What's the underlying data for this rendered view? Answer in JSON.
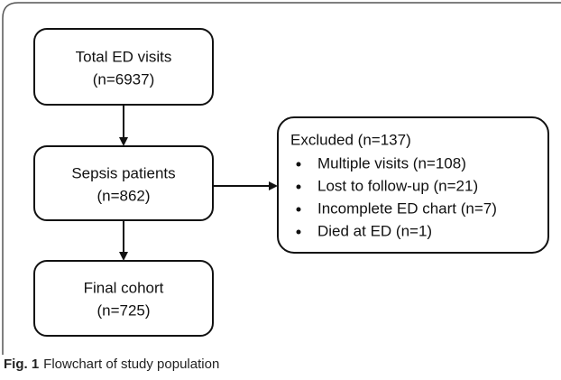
{
  "nodes": [
    {
      "lines": [
        "Total ED visits",
        "(n=6937)"
      ]
    },
    {
      "lines": [
        "Sepsis patients",
        "(n=862)"
      ]
    },
    {
      "lines": [
        "Final cohort",
        "(n=725)"
      ]
    }
  ],
  "excluded": {
    "title": "Excluded (n=137)",
    "items": [
      "Multiple visits (n=108)",
      "Lost to follow-up (n=21)",
      "Incomplete ED chart (n=7)",
      "Died at ED (n=1)"
    ]
  },
  "caption": {
    "label": "Fig. 1",
    "text": "Flowchart of study population"
  }
}
